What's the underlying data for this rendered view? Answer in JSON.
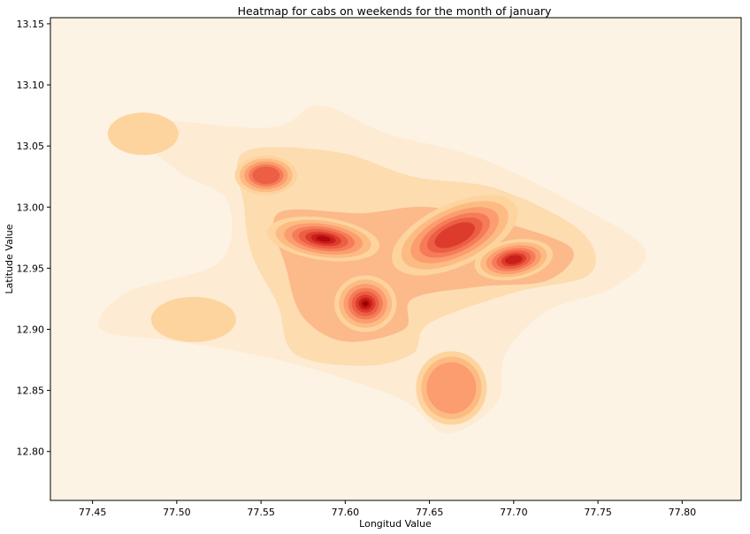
{
  "chart_data": {
    "type": "heatmap",
    "title": "Heatmap for cabs on weekends for the month of january",
    "xlabel": "Longitud Value",
    "ylabel": "Latitude Value",
    "xlim": [
      77.425,
      77.835
    ],
    "ylim": [
      12.76,
      13.155
    ],
    "xticks": [
      "77.45",
      "77.50",
      "77.55",
      "77.60",
      "77.65",
      "77.70",
      "77.75",
      "77.80"
    ],
    "yticks": [
      "12.80",
      "12.85",
      "12.90",
      "12.95",
      "13.00",
      "13.05",
      "13.10",
      "13.15"
    ],
    "colormap": "OrRd",
    "background_color": "#fdf3e4",
    "grid": false,
    "hotspots": [
      {
        "lon": 77.612,
        "lat": 12.921,
        "density": 1.0
      },
      {
        "lon": 77.587,
        "lat": 12.974,
        "density": 0.86
      },
      {
        "lon": 77.7,
        "lat": 12.957,
        "density": 0.8
      },
      {
        "lon": 77.665,
        "lat": 12.977,
        "density": 0.62
      },
      {
        "lon": 77.553,
        "lat": 13.026,
        "density": 0.5
      },
      {
        "lon": 77.663,
        "lat": 12.852,
        "density": 0.38
      },
      {
        "lon": 77.51,
        "lat": 12.908,
        "density": 0.14
      },
      {
        "lon": 77.48,
        "lat": 13.06,
        "density": 0.08
      }
    ]
  }
}
